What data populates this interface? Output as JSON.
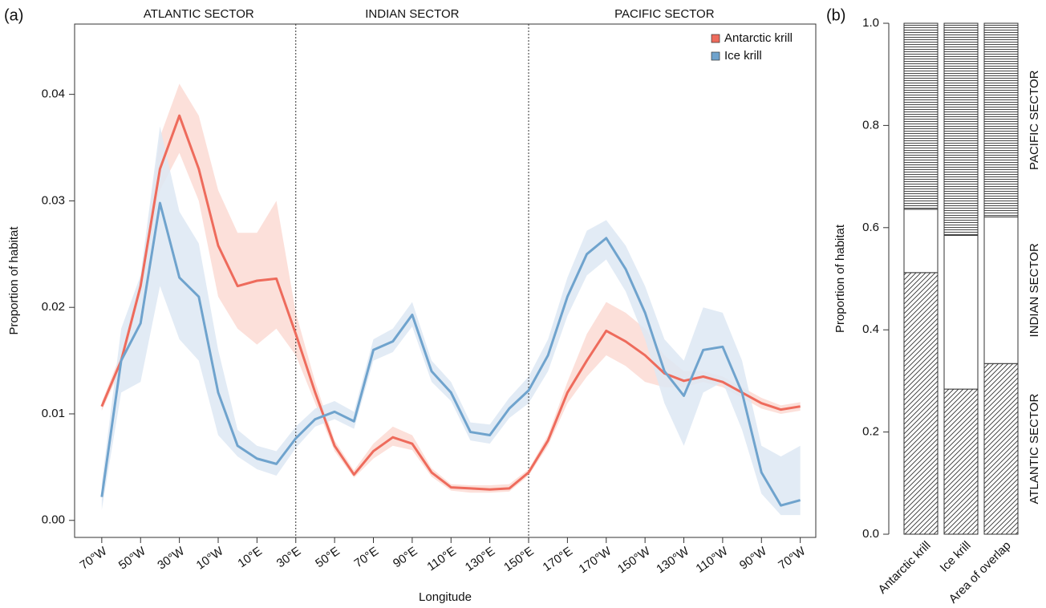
{
  "chart_data": [
    {
      "type": "line",
      "label": "(a)",
      "xlabel": "Longitude",
      "ylabel": "Proportion of habitat",
      "x": [
        0,
        10,
        20,
        30,
        40,
        50,
        60,
        70,
        80,
        90,
        100,
        110,
        120,
        130,
        140,
        150,
        160,
        170,
        180,
        190,
        200,
        210,
        220,
        230,
        240,
        250,
        260,
        270,
        280,
        290,
        300,
        310,
        320,
        330,
        340,
        350,
        360
      ],
      "xlim": [
        -14,
        368
      ],
      "ylim": [
        -0.0016,
        0.0466
      ],
      "xticks": [
        {
          "value": 0,
          "label": "70°W"
        },
        {
          "value": 20,
          "label": "50°W"
        },
        {
          "value": 40,
          "label": "30°W"
        },
        {
          "value": 60,
          "label": "10°W"
        },
        {
          "value": 80,
          "label": "10°E"
        },
        {
          "value": 100,
          "label": "30°E"
        },
        {
          "value": 120,
          "label": "50°E"
        },
        {
          "value": 140,
          "label": "70°E"
        },
        {
          "value": 160,
          "label": "90°E"
        },
        {
          "value": 180,
          "label": "110°E"
        },
        {
          "value": 200,
          "label": "130°E"
        },
        {
          "value": 220,
          "label": "150°E"
        },
        {
          "value": 240,
          "label": "170°E"
        },
        {
          "value": 260,
          "label": "170°W"
        },
        {
          "value": 280,
          "label": "150°W"
        },
        {
          "value": 300,
          "label": "130°W"
        },
        {
          "value": 320,
          "label": "110°W"
        },
        {
          "value": 340,
          "label": "90°W"
        },
        {
          "value": 360,
          "label": "70°W"
        }
      ],
      "yticks": [
        {
          "value": 0,
          "label": "0.00"
        },
        0.01,
        0.02,
        0.03,
        0.04
      ],
      "legend": "upper right",
      "sectors": [
        "ATLANTIC SECTOR",
        "INDIAN SECTOR",
        "PACIFIC SECTOR"
      ],
      "dividers": [
        100,
        220
      ],
      "series": [
        {
          "name": "Antarctic krill",
          "color": "#ee6b5c",
          "band_color": "#fcdad4",
          "values": [
            0.0107,
            0.015,
            0.022,
            0.033,
            0.038,
            0.033,
            0.0258,
            0.022,
            0.0225,
            0.0227,
            0.0175,
            0.012,
            0.007,
            0.0043,
            0.0065,
            0.0078,
            0.0072,
            0.0045,
            0.0031,
            0.003,
            0.0029,
            0.003,
            0.0045,
            0.0075,
            0.012,
            0.015,
            0.0178,
            0.0168,
            0.0155,
            0.0138,
            0.0131,
            0.0135,
            0.013,
            0.012,
            0.011,
            0.0104,
            0.0107
          ],
          "lower": [
            0.0103,
            0.0143,
            0.0213,
            0.031,
            0.0345,
            0.03,
            0.021,
            0.018,
            0.0165,
            0.018,
            0.0155,
            0.011,
            0.0065,
            0.004,
            0.0058,
            0.007,
            0.0066,
            0.0041,
            0.0028,
            0.0026,
            0.0026,
            0.0027,
            0.0042,
            0.007,
            0.011,
            0.0135,
            0.0155,
            0.0145,
            0.013,
            0.0125,
            0.0125,
            0.013,
            0.0125,
            0.0115,
            0.0105,
            0.01,
            0.0103
          ],
          "upper": [
            0.0111,
            0.0157,
            0.0228,
            0.036,
            0.041,
            0.038,
            0.031,
            0.027,
            0.027,
            0.03,
            0.0195,
            0.013,
            0.0075,
            0.0047,
            0.0072,
            0.0088,
            0.008,
            0.0049,
            0.0034,
            0.0033,
            0.0033,
            0.0034,
            0.0048,
            0.008,
            0.013,
            0.0175,
            0.0205,
            0.0195,
            0.018,
            0.0155,
            0.014,
            0.014,
            0.0135,
            0.0125,
            0.0115,
            0.0108,
            0.0111
          ]
        },
        {
          "name": "Ice krill",
          "color": "#6fa3cd",
          "band_color": "#dde8f3",
          "values": [
            0.0022,
            0.015,
            0.0185,
            0.0298,
            0.0228,
            0.021,
            0.012,
            0.007,
            0.0058,
            0.0053,
            0.0077,
            0.0095,
            0.0102,
            0.0093,
            0.016,
            0.0168,
            0.0193,
            0.014,
            0.012,
            0.0083,
            0.008,
            0.0105,
            0.0122,
            0.0155,
            0.021,
            0.025,
            0.0265,
            0.0236,
            0.0195,
            0.014,
            0.0117,
            0.016,
            0.0163,
            0.012,
            0.0045,
            0.0014,
            0.0019
          ],
          "lower": [
            0.001,
            0.012,
            0.013,
            0.022,
            0.017,
            0.015,
            0.008,
            0.006,
            0.0048,
            0.0042,
            0.0068,
            0.0088,
            0.0095,
            0.0086,
            0.015,
            0.0158,
            0.0182,
            0.013,
            0.0112,
            0.0075,
            0.0072,
            0.0096,
            0.011,
            0.014,
            0.0192,
            0.023,
            0.0245,
            0.0215,
            0.017,
            0.011,
            0.007,
            0.012,
            0.013,
            0.0085,
            0.0025,
            0.0005,
            0.0005
          ],
          "upper": [
            0.0035,
            0.018,
            0.023,
            0.037,
            0.029,
            0.026,
            0.016,
            0.0085,
            0.007,
            0.0065,
            0.0088,
            0.0105,
            0.0112,
            0.0102,
            0.017,
            0.018,
            0.0205,
            0.015,
            0.013,
            0.0092,
            0.009,
            0.0115,
            0.0135,
            0.017,
            0.0228,
            0.0272,
            0.0282,
            0.0258,
            0.022,
            0.017,
            0.015,
            0.02,
            0.0195,
            0.015,
            0.007,
            0.006,
            0.007
          ]
        }
      ]
    },
    {
      "type": "bar",
      "stacked": true,
      "label": "(b)",
      "ylabel": "Proportion of habitat",
      "categories": [
        "Antarctic krill",
        "Ice krill",
        "Area of overlap"
      ],
      "ylim": [
        0,
        1
      ],
      "yticks": [
        {
          "value": 0,
          "label": "0.0"
        },
        0.2,
        0.4,
        0.6,
        0.8,
        {
          "value": 1,
          "label": "1.0"
        }
      ],
      "series": [
        {
          "name": "ATLANTIC SECTOR",
          "pattern": "diagonal",
          "values": [
            0.512,
            0.284,
            0.334
          ]
        },
        {
          "name": "INDIAN SECTOR",
          "pattern": "none",
          "values": [
            0.124,
            0.301,
            0.287
          ]
        },
        {
          "name": "PACIFIC SECTOR",
          "pattern": "horizontal",
          "values": [
            0.364,
            0.415,
            0.379
          ]
        }
      ]
    }
  ]
}
